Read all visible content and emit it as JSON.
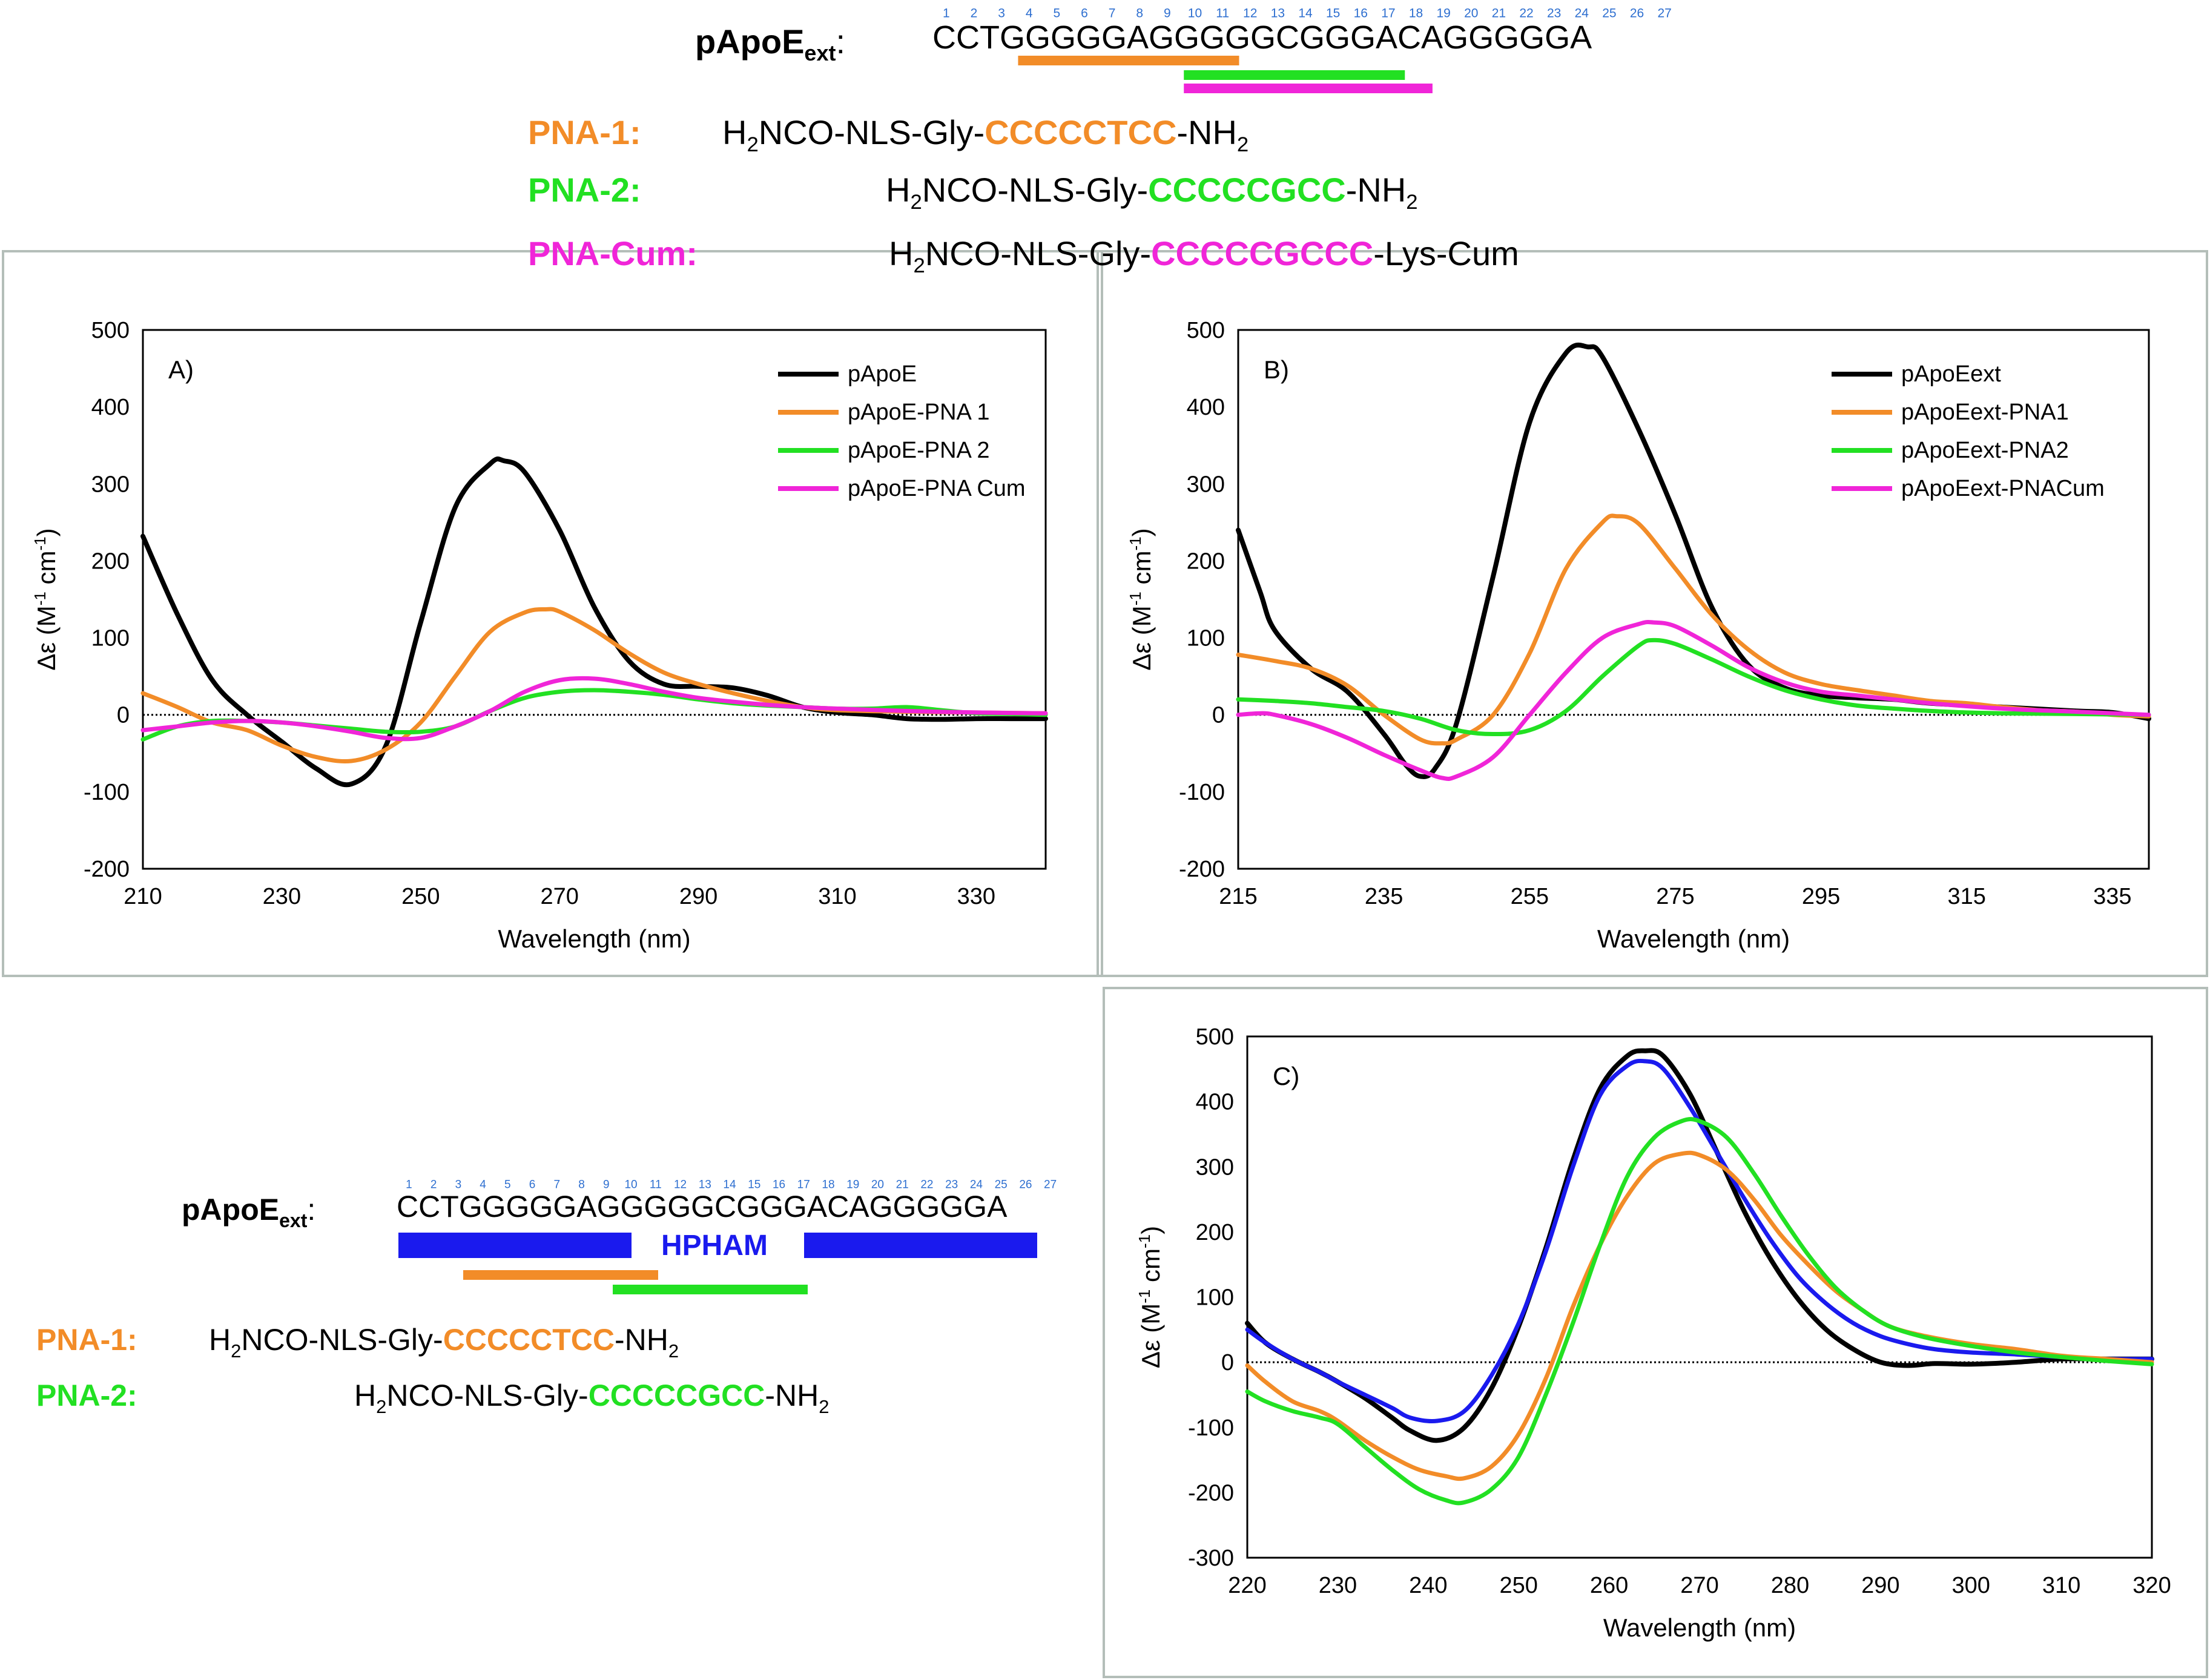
{
  "colors": {
    "black": "#000000",
    "orange": "#F28C28",
    "green": "#22E022",
    "magenta": "#F025D8",
    "blue": "#1A1AEE",
    "blue_label": "#2E6FD0",
    "frame": "#B4BEB9",
    "grid": "#D0D0D0"
  },
  "top": {
    "label_main": "pApoE",
    "label_sub": "ext",
    "label_colon": ":",
    "sequence": "CCTGGGGGAGGGGGCGGGACAGGGGGA",
    "position_numbers": [
      "1",
      "2",
      "3",
      "4",
      "5",
      "6",
      "7",
      "8",
      "9",
      "10",
      "11",
      "12",
      "13",
      "14",
      "15",
      "16",
      "17",
      "18",
      "19",
      "20",
      "21",
      "22",
      "23",
      "24",
      "25",
      "26",
      "27"
    ],
    "pna": [
      {
        "name": "PNA-1:",
        "prefix_h": "H",
        "prefix_sub": "2",
        "prefix_rest": "NCO-NLS-Gly-",
        "seq": "CCCCCTCC",
        "suffix_main": "-NH",
        "suffix_sub": "2",
        "color_key": "orange"
      },
      {
        "name": "PNA-2:",
        "prefix_h": "H",
        "prefix_sub": "2",
        "prefix_rest": "NCO-NLS-Gly-",
        "seq": "CCCCCGCC",
        "suffix_main": "-NH",
        "suffix_sub": "2",
        "color_key": "green"
      },
      {
        "name": "PNA-Cum:",
        "prefix_h": "H",
        "prefix_sub": "2",
        "prefix_rest": "NCO-NLS-Gly-",
        "seq": "CCCCCGCCC",
        "suffix_main": "-Lys-Cum",
        "suffix_sub": "",
        "color_key": "magenta"
      }
    ]
  },
  "bottom": {
    "label_main": "pApoE",
    "label_sub": "ext",
    "label_colon": ":",
    "sequence": "CCTGGGGGAGGGGGCGGGACAGGGGGA",
    "position_numbers": [
      "1",
      "2",
      "3",
      "4",
      "5",
      "6",
      "7",
      "8",
      "9",
      "10",
      "11",
      "12",
      "13",
      "14",
      "15",
      "16",
      "17",
      "18",
      "19",
      "20",
      "21",
      "22",
      "23",
      "24",
      "25",
      "26",
      "27"
    ],
    "hpham_label": "HPHAM",
    "pna": [
      {
        "name": "PNA-1:",
        "prefix_h": "H",
        "prefix_sub": "2",
        "prefix_rest": "NCO-NLS-Gly-",
        "seq": "CCCCCTCC",
        "suffix_main": "-NH",
        "suffix_sub": "2",
        "color_key": "orange"
      },
      {
        "name": "PNA-2:",
        "prefix_h": "H",
        "prefix_sub": "2",
        "prefix_rest": "NCO-NLS-Gly-",
        "seq": "CCCCCGCC",
        "suffix_main": "-NH",
        "suffix_sub": "2",
        "color_key": "green"
      }
    ]
  },
  "chart_data": [
    {
      "id": "A",
      "type": "line",
      "panel_label": "A)",
      "xlabel": "Wavelength (nm)",
      "ylabel_main": "Δε (M",
      "ylabel_sup1": "-1",
      "ylabel_mid": " cm",
      "ylabel_sup2": "-1",
      "ylabel_end": ")",
      "xlim": [
        210,
        340
      ],
      "ylim": [
        -200,
        500
      ],
      "xticks": [
        210,
        230,
        250,
        270,
        290,
        310,
        330
      ],
      "yticks": [
        -200,
        -100,
        0,
        100,
        200,
        300,
        400,
        500
      ],
      "legend_position": "top-right",
      "series": [
        {
          "name": "pApoE",
          "color_key": "black",
          "x": [
            210,
            215,
            220,
            225,
            230,
            235,
            240,
            245,
            250,
            255,
            260,
            262,
            265,
            270,
            275,
            280,
            285,
            290,
            295,
            300,
            305,
            310,
            315,
            320,
            325,
            330,
            335,
            340
          ],
          "y": [
            232,
            130,
            45,
            0,
            -35,
            -70,
            -90,
            -40,
            120,
            270,
            326,
            330,
            315,
            240,
            140,
            70,
            40,
            37,
            35,
            25,
            10,
            3,
            0,
            -5,
            -6,
            -5,
            -5,
            -5
          ]
        },
        {
          "name": "pApoE-PNA 1",
          "color_key": "orange",
          "x": [
            210,
            215,
            220,
            225,
            230,
            235,
            240,
            245,
            250,
            255,
            260,
            265,
            268,
            270,
            275,
            280,
            285,
            290,
            295,
            300,
            305,
            310,
            320,
            330,
            340
          ],
          "y": [
            28,
            10,
            -10,
            -20,
            -40,
            -55,
            -60,
            -45,
            -10,
            50,
            108,
            133,
            137,
            134,
            110,
            80,
            55,
            40,
            28,
            18,
            10,
            6,
            4,
            3,
            2
          ]
        },
        {
          "name": "pApoE-PNA 2",
          "color_key": "green",
          "x": [
            210,
            215,
            220,
            225,
            230,
            235,
            240,
            245,
            250,
            255,
            260,
            265,
            270,
            275,
            280,
            285,
            290,
            295,
            300,
            305,
            310,
            315,
            320,
            325,
            330,
            335,
            340
          ],
          "y": [
            -32,
            -15,
            -8,
            -8,
            -10,
            -14,
            -18,
            -22,
            -22,
            -15,
            5,
            22,
            30,
            32,
            30,
            26,
            20,
            15,
            12,
            10,
            8,
            8,
            10,
            6,
            2,
            1,
            0
          ]
        },
        {
          "name": "pApoE-PNA Cum",
          "color_key": "magenta",
          "x": [
            210,
            215,
            220,
            225,
            230,
            235,
            240,
            245,
            250,
            255,
            260,
            265,
            270,
            275,
            280,
            285,
            290,
            295,
            300,
            305,
            310,
            320,
            330,
            340
          ],
          "y": [
            -20,
            -15,
            -10,
            -8,
            -10,
            -15,
            -22,
            -30,
            -30,
            -15,
            5,
            30,
            45,
            47,
            40,
            30,
            22,
            17,
            13,
            10,
            8,
            5,
            3,
            2
          ]
        }
      ]
    },
    {
      "id": "B",
      "type": "line",
      "panel_label": "B)",
      "xlabel": "Wavelength (nm)",
      "ylabel_main": "Δε (M",
      "ylabel_sup1": "-1",
      "ylabel_mid": " cm",
      "ylabel_sup2": "-1",
      "ylabel_end": ")",
      "xlim": [
        215,
        340
      ],
      "ylim": [
        -200,
        500
      ],
      "xticks": [
        215,
        235,
        255,
        275,
        295,
        315,
        335
      ],
      "yticks": [
        -200,
        -100,
        0,
        100,
        200,
        300,
        400,
        500
      ],
      "legend_position": "top-right",
      "series": [
        {
          "name": "pApoEext",
          "color_key": "black",
          "x": [
            215,
            218,
            220,
            225,
            230,
            235,
            238,
            240,
            242,
            245,
            250,
            255,
            260,
            263,
            265,
            270,
            275,
            280,
            285,
            290,
            295,
            300,
            305,
            310,
            320,
            330,
            335,
            340
          ],
          "y": [
            240,
            160,
            110,
            60,
            30,
            -25,
            -65,
            -80,
            -70,
            -10,
            180,
            380,
            470,
            478,
            465,
            370,
            260,
            140,
            65,
            35,
            25,
            22,
            20,
            15,
            10,
            5,
            3,
            -5
          ]
        },
        {
          "name": "pApoEext-PNA1",
          "color_key": "orange",
          "x": [
            215,
            220,
            225,
            230,
            235,
            240,
            243,
            245,
            250,
            255,
            260,
            265,
            267,
            270,
            275,
            280,
            285,
            290,
            295,
            300,
            305,
            310,
            315,
            320,
            325,
            330,
            335,
            340
          ],
          "y": [
            78,
            70,
            60,
            38,
            0,
            -32,
            -37,
            -32,
            0,
            80,
            190,
            250,
            258,
            248,
            190,
            130,
            85,
            55,
            40,
            32,
            25,
            18,
            15,
            10,
            6,
            4,
            0,
            -2
          ]
        },
        {
          "name": "pApoEext-PNA2",
          "color_key": "green",
          "x": [
            215,
            220,
            225,
            230,
            235,
            240,
            245,
            250,
            255,
            260,
            265,
            270,
            272,
            275,
            280,
            285,
            290,
            295,
            300,
            305,
            310,
            315,
            320,
            330,
            340
          ],
          "y": [
            20,
            18,
            15,
            10,
            5,
            -5,
            -20,
            -25,
            -20,
            5,
            50,
            90,
            97,
            92,
            72,
            50,
            32,
            20,
            12,
            8,
            5,
            3,
            2,
            1,
            0
          ]
        },
        {
          "name": "pApoEext-PNACum",
          "color_key": "magenta",
          "x": [
            215,
            218,
            220,
            225,
            230,
            235,
            240,
            243,
            245,
            250,
            255,
            260,
            265,
            270,
            272,
            275,
            280,
            285,
            290,
            295,
            300,
            305,
            310,
            320,
            330,
            340
          ],
          "y": [
            0,
            2,
            0,
            -12,
            -30,
            -52,
            -72,
            -82,
            -80,
            -55,
            0,
            55,
            100,
            118,
            120,
            115,
            90,
            62,
            42,
            30,
            25,
            20,
            15,
            8,
            4,
            0
          ]
        }
      ]
    },
    {
      "id": "C",
      "type": "line",
      "panel_label": "C)",
      "xlabel": "Wavelength (nm)",
      "ylabel_main": "Δε (M",
      "ylabel_sup1": "-1",
      "ylabel_mid": " cm",
      "ylabel_sup2": "-1",
      "ylabel_end": ")",
      "xlim": [
        220,
        320
      ],
      "ylim": [
        -300,
        500
      ],
      "xticks": [
        220,
        230,
        240,
        250,
        260,
        270,
        280,
        290,
        300,
        310,
        320
      ],
      "yticks": [
        -300,
        -200,
        -100,
        0,
        100,
        200,
        300,
        400,
        500
      ],
      "legend_position": "none",
      "series": [
        {
          "name": "black",
          "color_key": "black",
          "x": [
            220,
            222,
            225,
            228,
            230,
            233,
            236,
            238,
            241,
            244,
            247,
            250,
            253,
            256,
            259,
            262,
            264,
            266,
            269,
            272,
            275,
            278,
            281,
            284,
            287,
            290,
            293,
            296,
            300,
            305,
            310,
            315,
            320
          ],
          "y": [
            60,
            30,
            5,
            -15,
            -30,
            -55,
            -85,
            -105,
            -120,
            -100,
            -40,
            55,
            175,
            310,
            420,
            470,
            478,
            470,
            410,
            320,
            230,
            155,
            95,
            50,
            20,
            0,
            -5,
            -2,
            -3,
            0,
            5,
            5,
            5
          ]
        },
        {
          "name": "blue",
          "color_key": "blue",
          "x": [
            220,
            222,
            225,
            228,
            230,
            233,
            236,
            238,
            241,
            244,
            247,
            250,
            253,
            256,
            259,
            262,
            264,
            266,
            269,
            272,
            275,
            278,
            281,
            284,
            287,
            290,
            293,
            296,
            300,
            305,
            310,
            315,
            320
          ],
          "y": [
            50,
            30,
            5,
            -15,
            -30,
            -50,
            -70,
            -85,
            -90,
            -75,
            -20,
            60,
            170,
            300,
            410,
            455,
            462,
            450,
            390,
            320,
            250,
            185,
            130,
            90,
            60,
            40,
            28,
            20,
            15,
            12,
            8,
            5,
            5
          ]
        },
        {
          "name": "orange",
          "color_key": "orange",
          "x": [
            220,
            222,
            225,
            228,
            230,
            233,
            236,
            239,
            242,
            244,
            247,
            250,
            253,
            256,
            259,
            262,
            265,
            268,
            270,
            273,
            276,
            279,
            282,
            285,
            288,
            291,
            295,
            300,
            305,
            310,
            315,
            320
          ],
          "y": [
            -5,
            -30,
            -60,
            -75,
            -90,
            -120,
            -145,
            -165,
            -175,
            -178,
            -160,
            -110,
            -25,
            85,
            180,
            255,
            305,
            320,
            318,
            295,
            250,
            195,
            150,
            110,
            80,
            55,
            40,
            28,
            20,
            10,
            5,
            0
          ]
        },
        {
          "name": "green",
          "color_key": "green",
          "x": [
            220,
            222,
            225,
            228,
            230,
            233,
            236,
            239,
            242,
            244,
            247,
            250,
            253,
            256,
            259,
            262,
            265,
            268,
            270,
            273,
            276,
            279,
            282,
            285,
            288,
            291,
            295,
            300,
            305,
            310,
            315,
            320
          ],
          "y": [
            -45,
            -60,
            -75,
            -85,
            -95,
            -130,
            -165,
            -195,
            -212,
            -215,
            -195,
            -145,
            -50,
            60,
            180,
            285,
            345,
            370,
            370,
            345,
            290,
            225,
            165,
            115,
            80,
            55,
            38,
            25,
            15,
            8,
            2,
            -3
          ]
        }
      ]
    }
  ]
}
